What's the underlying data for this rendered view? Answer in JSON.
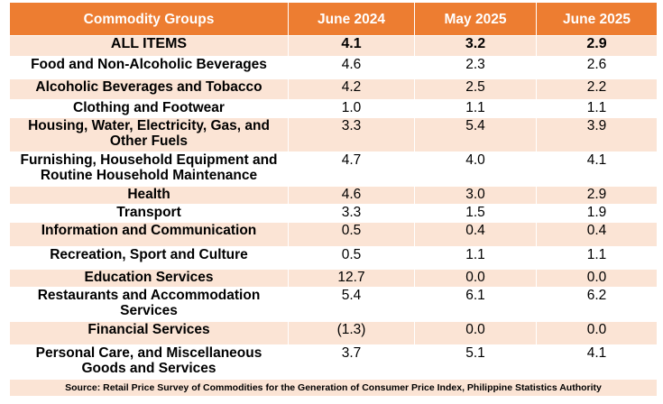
{
  "header": {
    "commodity_groups": "Commodity Groups",
    "col1": "June 2024",
    "col2": "May 2025",
    "col3": "June 2025"
  },
  "rows": [
    {
      "group": "ALL ITEMS",
      "v1": "4.1",
      "v2": "3.2",
      "v3": "2.9"
    },
    {
      "group": "Food and Non-Alcoholic Beverages",
      "v1": "4.6",
      "v2": "2.3",
      "v3": "2.6"
    },
    {
      "group": "Alcoholic Beverages and Tobacco",
      "v1": "4.2",
      "v2": "2.5",
      "v3": "2.2"
    },
    {
      "group": "Clothing and Footwear",
      "v1": "1.0",
      "v2": "1.1",
      "v3": "1.1"
    },
    {
      "group": "Housing, Water, Electricity, Gas, and Other Fuels",
      "v1": "3.3",
      "v2": "5.4",
      "v3": "3.9"
    },
    {
      "group": "Furnishing, Household Equipment and Routine Household Maintenance",
      "v1": "4.7",
      "v2": "4.0",
      "v3": "4.1"
    },
    {
      "group": "Health",
      "v1": "4.6",
      "v2": "3.0",
      "v3": "2.9"
    },
    {
      "group": "Transport",
      "v1": "3.3",
      "v2": "1.5",
      "v3": "1.9"
    },
    {
      "group": "Information and Communication",
      "v1": "0.5",
      "v2": "0.4",
      "v3": "0.4"
    },
    {
      "group": "Recreation, Sport and Culture",
      "v1": "0.5",
      "v2": "1.1",
      "v3": "1.1"
    },
    {
      "group": "Education Services",
      "v1": "12.7",
      "v2": "0.0",
      "v3": "0.0"
    },
    {
      "group": "Restaurants and Accommodation Services",
      "v1": "5.4",
      "v2": "6.1",
      "v3": "6.2"
    },
    {
      "group": "Financial Services",
      "v1": "(1.3)",
      "v2": "0.0",
      "v3": "0.0"
    },
    {
      "group": "Personal Care, and Miscellaneous Goods and Services",
      "v1": "3.7",
      "v2": "5.1",
      "v3": "4.1"
    }
  ],
  "source": "Source: Retail Price Survey of Commodities for the Generation of Consumer Price Index, Philippine Statistics Authority",
  "colors": {
    "header_bg": "#ed7d31",
    "band_bg": "#fbe4d5"
  }
}
